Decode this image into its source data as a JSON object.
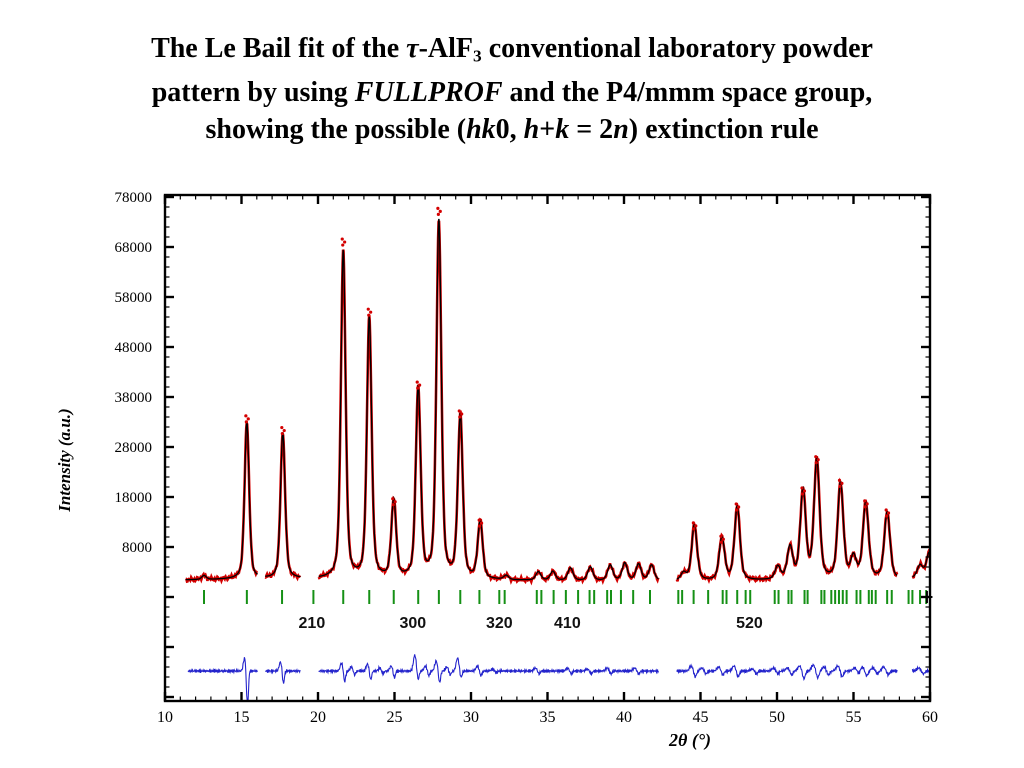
{
  "title": {
    "lines": [
      [
        {
          "t": "The Le Bail fit of the "
        },
        {
          "t": "τ",
          "i": 1
        },
        {
          "t": "-AlF"
        },
        {
          "t": "3",
          "sub": 1
        },
        {
          "t": " conventional laboratory powder"
        }
      ],
      [
        {
          "t": "pattern by using "
        },
        {
          "t": "FULLPROF",
          "i": 1
        },
        {
          "t": " and the P4/mmm space group,"
        }
      ],
      [
        {
          "t": "showing the possible ("
        },
        {
          "t": "hk",
          "i": 1
        },
        {
          "t": "0, "
        },
        {
          "t": "h",
          "i": 1
        },
        {
          "t": "+"
        },
        {
          "t": "k",
          "i": 1
        },
        {
          "t": " = 2"
        },
        {
          "t": "n",
          "i": 1
        },
        {
          "t": ") extinction rule"
        }
      ]
    ]
  },
  "chart_data": {
    "type": "line",
    "xlabel": "2θ (°)",
    "ylabel": "Intensity (a.u.)",
    "xlim": [
      10,
      60
    ],
    "x_major_ticks": [
      10,
      15,
      20,
      25,
      30,
      35,
      40,
      45,
      50,
      55,
      60
    ],
    "x_minor_step": 1,
    "y_tick_labels": [
      8000,
      18000,
      28000,
      38000,
      48000,
      58000,
      68000,
      78000
    ],
    "y_major_step": 10000,
    "y_minor_step": 2000,
    "ylim_top": 78000,
    "background_level": 1400,
    "data_range": [
      11.35,
      60.0
    ],
    "excluded_regions": [
      [
        16.05,
        16.55
      ],
      [
        18.85,
        20.05
      ],
      [
        42.25,
        43.45
      ],
      [
        57.85,
        58.85
      ]
    ],
    "series": [
      {
        "name": "observed",
        "style": "points",
        "color": "#d40000"
      },
      {
        "name": "calculated",
        "style": "line",
        "color": "#000000"
      },
      {
        "name": "bragg_positions",
        "style": "ticks",
        "color": "#159015"
      },
      {
        "name": "difference",
        "style": "line",
        "color": "#2323cc"
      }
    ],
    "peaks": [
      {
        "two_theta": 12.55,
        "intensity": 800
      },
      {
        "two_theta": 15.35,
        "intensity": 31500
      },
      {
        "two_theta": 17.7,
        "intensity": 29200
      },
      {
        "two_theta": 21.65,
        "intensity": 65500
      },
      {
        "two_theta": 23.35,
        "intensity": 52000
      },
      {
        "two_theta": 24.95,
        "intensity": 15500
      },
      {
        "two_theta": 26.55,
        "intensity": 38000
      },
      {
        "two_theta": 27.9,
        "intensity": 71500
      },
      {
        "two_theta": 29.3,
        "intensity": 32500
      },
      {
        "two_theta": 30.6,
        "intensity": 11500
      },
      {
        "two_theta": 32.3,
        "intensity": 800
      },
      {
        "two_theta": 34.4,
        "intensity": 1700
      },
      {
        "two_theta": 35.35,
        "intensity": 1800
      },
      {
        "two_theta": 36.5,
        "intensity": 2500
      },
      {
        "two_theta": 37.8,
        "intensity": 2700
      },
      {
        "two_theta": 39.1,
        "intensity": 3100
      },
      {
        "two_theta": 40.05,
        "intensity": 3500
      },
      {
        "two_theta": 40.95,
        "intensity": 3300
      },
      {
        "two_theta": 41.8,
        "intensity": 3100
      },
      {
        "two_theta": 43.9,
        "intensity": 1500
      },
      {
        "two_theta": 44.6,
        "intensity": 11200
      },
      {
        "two_theta": 46.4,
        "intensity": 8600
      },
      {
        "two_theta": 47.4,
        "intensity": 14800
      },
      {
        "two_theta": 50.05,
        "intensity": 2600
      },
      {
        "two_theta": 50.85,
        "intensity": 6400
      },
      {
        "two_theta": 51.7,
        "intensity": 17800
      },
      {
        "two_theta": 52.6,
        "intensity": 23800
      },
      {
        "two_theta": 54.15,
        "intensity": 19200
      },
      {
        "two_theta": 55.0,
        "intensity": 4200
      },
      {
        "two_theta": 55.8,
        "intensity": 15200
      },
      {
        "two_theta": 57.2,
        "intensity": 13400
      },
      {
        "two_theta": 59.35,
        "intensity": 2600
      },
      {
        "two_theta": 59.95,
        "intensity": 5200
      }
    ],
    "peak_fwhm": {
      "base": 0.34,
      "slope": 0.0022
    },
    "bragg_ticks": [
      12.55,
      15.35,
      17.65,
      19.7,
      21.65,
      23.35,
      24.95,
      26.55,
      27.9,
      29.3,
      30.55,
      31.85,
      32.2,
      34.3,
      34.6,
      35.4,
      36.2,
      37.0,
      37.75,
      38.05,
      38.9,
      39.15,
      39.8,
      40.6,
      41.7,
      43.55,
      43.8,
      44.55,
      45.5,
      46.45,
      46.7,
      47.4,
      47.95,
      48.25,
      49.85,
      50.1,
      50.75,
      50.95,
      51.8,
      52.0,
      52.9,
      53.1,
      53.55,
      53.8,
      54.05,
      54.3,
      54.55,
      55.2,
      55.45,
      56.0,
      56.2,
      56.45,
      57.2,
      57.5,
      58.6,
      58.85,
      59.35,
      59.75
    ],
    "reflection_labels": [
      {
        "label": "210",
        "two_theta": 19.6
      },
      {
        "label": "300",
        "two_theta": 26.2
      },
      {
        "label": "320",
        "two_theta": 31.85
      },
      {
        "label": "410",
        "two_theta": 36.3
      },
      {
        "label": "520",
        "two_theta": 48.2
      }
    ],
    "plus_marker_two_theta": 59.8,
    "difference_features": [
      {
        "t": 15.35,
        "u": 13,
        "d": 40
      },
      {
        "t": 17.7,
        "u": 9,
        "d": 13
      },
      {
        "t": 21.7,
        "u": 8,
        "d": 11
      },
      {
        "t": 22.35,
        "u": 4,
        "d": 4
      },
      {
        "t": 23.4,
        "u": 7,
        "d": 9
      },
      {
        "t": 24.2,
        "u": 3,
        "d": 3
      },
      {
        "t": 24.95,
        "u": 5,
        "d": 7
      },
      {
        "t": 26.5,
        "u": 16,
        "d": 9
      },
      {
        "t": 27.2,
        "u": 5,
        "d": 5
      },
      {
        "t": 27.9,
        "u": 10,
        "d": 12
      },
      {
        "t": 28.6,
        "u": 4,
        "d": 4
      },
      {
        "t": 29.3,
        "u": 13,
        "d": 7
      },
      {
        "t": 30.6,
        "u": 5,
        "d": 5
      },
      {
        "t": 31.6,
        "u": 2,
        "d": 2
      },
      {
        "t": 34.4,
        "u": 3,
        "d": 3
      },
      {
        "t": 36.5,
        "u": 3,
        "d": 3
      },
      {
        "t": 37.8,
        "u": 2,
        "d": 3
      },
      {
        "t": 39.1,
        "u": 3,
        "d": 3
      },
      {
        "t": 40.9,
        "u": 3,
        "d": 3
      },
      {
        "t": 44.6,
        "u": 5,
        "d": 6
      },
      {
        "t": 45.3,
        "u": 3,
        "d": 3
      },
      {
        "t": 46.4,
        "u": 4,
        "d": 4
      },
      {
        "t": 47.4,
        "u": 5,
        "d": 6
      },
      {
        "t": 48.6,
        "u": 2,
        "d": 3
      },
      {
        "t": 50.0,
        "u": 3,
        "d": 3
      },
      {
        "t": 50.9,
        "u": 3,
        "d": 4
      },
      {
        "t": 51.7,
        "u": 5,
        "d": 8
      },
      {
        "t": 52.6,
        "u": 6,
        "d": 7
      },
      {
        "t": 53.3,
        "u": 4,
        "d": 4
      },
      {
        "t": 54.2,
        "u": 5,
        "d": 6
      },
      {
        "t": 55.3,
        "u": 3,
        "d": 3
      },
      {
        "t": 55.8,
        "u": 4,
        "d": 5
      },
      {
        "t": 56.5,
        "u": 3,
        "d": 3
      },
      {
        "t": 57.2,
        "u": 4,
        "d": 4
      },
      {
        "t": 59.5,
        "u": 3,
        "d": 3
      }
    ]
  }
}
